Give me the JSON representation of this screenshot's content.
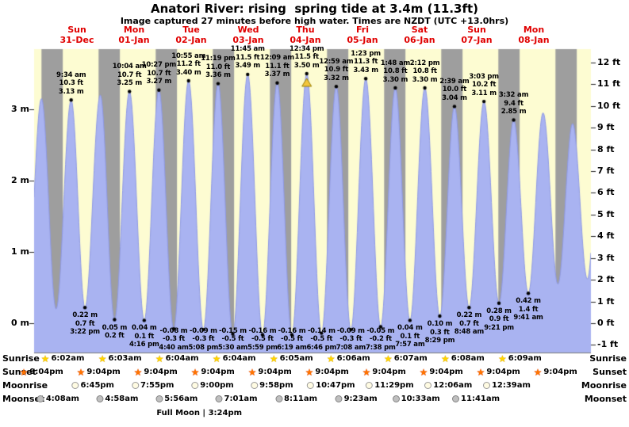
{
  "title": "Anatori River: rising  spring tide at 3.4m (11.3ft)",
  "subtitle": "Image captured 27 minutes before high water. Times are NZDT (UTC +13.0hrs)",
  "chart_data": {
    "type": "area",
    "title": "Anatori River: rising  spring tide at 3.4m (11.3ft)",
    "x_axis_days": [
      {
        "name": "Sun",
        "date": "31-Dec"
      },
      {
        "name": "Mon",
        "date": "01-Jan"
      },
      {
        "name": "Tue",
        "date": "02-Jan"
      },
      {
        "name": "Wed",
        "date": "03-Jan"
      },
      {
        "name": "Thu",
        "date": "04-Jan"
      },
      {
        "name": "Fri",
        "date": "05-Jan"
      },
      {
        "name": "Sat",
        "date": "06-Jan"
      },
      {
        "name": "Sun",
        "date": "07-Jan"
      },
      {
        "name": "Mon",
        "date": "08-Jan"
      }
    ],
    "y_axis": {
      "m_labels": [
        {
          "text": "3 m",
          "v": 3
        },
        {
          "text": "2 m",
          "v": 2
        },
        {
          "text": "1 m",
          "v": 1
        },
        {
          "text": "0 m",
          "v": 0
        }
      ],
      "ft_labels": [
        {
          "text": "12 ft",
          "v": 12
        },
        {
          "text": "11 ft",
          "v": 11
        },
        {
          "text": "10 ft",
          "v": 10
        },
        {
          "text": "9 ft",
          "v": 9
        },
        {
          "text": "8 ft",
          "v": 8
        },
        {
          "text": "7 ft",
          "v": 7
        },
        {
          "text": "6 ft",
          "v": 6
        },
        {
          "text": "5 ft",
          "v": 5
        },
        {
          "text": "4 ft",
          "v": 4
        },
        {
          "text": "3 ft",
          "v": 3
        },
        {
          "text": "2 ft",
          "v": 2
        },
        {
          "text": "1 ft",
          "v": 1
        },
        {
          "text": "0 ft",
          "v": 0
        },
        {
          "text": "-1 ft",
          "v": -1
        }
      ]
    },
    "extremes": [
      {
        "t": -9.2,
        "h": 0.3,
        "kind": "low"
      },
      {
        "t": -2.92,
        "h": 3.15,
        "kind": "high"
      },
      {
        "t": 3.25,
        "h": 0.2,
        "kind": "low"
      },
      {
        "t": 9.57,
        "h": 3.13,
        "kind": "high",
        "lines": [
          "9:34 am",
          "10.3 ft",
          "3.13 m"
        ]
      },
      {
        "t": 15.37,
        "h": 0.22,
        "kind": "low",
        "lines": [
          "0.22 m",
          "0.7 ft",
          "3:22 pm"
        ]
      },
      {
        "t": 21.83,
        "h": 3.2,
        "kind": "high"
      },
      {
        "t": 27.8,
        "h": 0.05,
        "kind": "low",
        "lines": [
          "0.05 m",
          "0.2 ft"
        ]
      },
      {
        "t": 34.07,
        "h": 3.25,
        "kind": "high",
        "lines": [
          "10:04 am",
          "10.7 ft",
          "3.25 m"
        ]
      },
      {
        "t": 40.27,
        "h": 0.04,
        "kind": "low",
        "lines": [
          "0.04 m",
          "0.1 ft",
          "4:16 pm"
        ]
      },
      {
        "t": 46.45,
        "h": 3.27,
        "kind": "high",
        "lines": [
          "10:27 pm",
          "10.7 ft",
          "3.27 m"
        ]
      },
      {
        "t": 52.67,
        "h": -0.08,
        "kind": "low",
        "lines": [
          "-0.08 m",
          "-0.3 ft",
          "4:40 am"
        ]
      },
      {
        "t": 58.92,
        "h": 3.4,
        "kind": "high",
        "lines": [
          "10:55 am",
          "11.2 ft",
          "3.40 m"
        ]
      },
      {
        "t": 65.13,
        "h": -0.09,
        "kind": "low",
        "lines": [
          "-0.09 m",
          "-0.3 ft",
          "5:08 pm"
        ]
      },
      {
        "t": 71.32,
        "h": 3.36,
        "kind": "high",
        "lines": [
          "11:19 pm",
          "11.0 ft",
          "3.36 m"
        ]
      },
      {
        "t": 77.5,
        "h": -0.15,
        "kind": "low",
        "lines": [
          "-0.15 m",
          "-0.5 ft",
          "5:30 am"
        ]
      },
      {
        "t": 83.75,
        "h": 3.49,
        "kind": "high",
        "lines": [
          "11:45 am",
          "11.5 ft",
          "3.49 m"
        ]
      },
      {
        "t": 89.98,
        "h": -0.16,
        "kind": "low",
        "lines": [
          "-0.16 m",
          "-0.5 ft",
          "5:59 pm"
        ]
      },
      {
        "t": 96.15,
        "h": 3.37,
        "kind": "high",
        "lines": [
          "12:09 am",
          "11.1 ft",
          "3.37 m"
        ]
      },
      {
        "t": 102.32,
        "h": -0.16,
        "kind": "low",
        "lines": [
          "-0.16 m",
          "-0.5 ft",
          "6:19 am"
        ]
      },
      {
        "t": 108.57,
        "h": 3.5,
        "kind": "high",
        "lines": [
          "12:34 pm",
          "11.5 ft",
          "3.50 m"
        ],
        "current": true
      },
      {
        "t": 114.77,
        "h": -0.14,
        "kind": "low",
        "lines": [
          "-0.14 m",
          "-0.5 ft",
          "6:46 pm"
        ]
      },
      {
        "t": 120.98,
        "h": 3.32,
        "kind": "high",
        "lines": [
          "12:59 am",
          "10.9 ft",
          "3.32 m"
        ]
      },
      {
        "t": 127.13,
        "h": -0.09,
        "kind": "low",
        "lines": [
          "-0.09 m",
          "-0.3 ft",
          "7:08 am"
        ]
      },
      {
        "t": 133.38,
        "h": 3.43,
        "kind": "high",
        "lines": [
          "1:23 pm",
          "11.3 ft",
          "3.43 m"
        ]
      },
      {
        "t": 139.63,
        "h": -0.05,
        "kind": "low",
        "lines": [
          "-0.05 m",
          "-0.2 ft",
          "7:38 pm"
        ]
      },
      {
        "t": 145.8,
        "h": 3.3,
        "kind": "high",
        "lines": [
          "1:48 am",
          "10.8 ft",
          "3.30 m"
        ]
      },
      {
        "t": 151.95,
        "h": 0.04,
        "kind": "low",
        "lines": [
          "0.04 m",
          "0.1 ft",
          "7:57 am"
        ]
      },
      {
        "t": 158.2,
        "h": 3.3,
        "kind": "high",
        "lines": [
          "2:12 pm",
          "10.8 ft",
          "3.30 m"
        ]
      },
      {
        "t": 164.48,
        "h": 0.1,
        "kind": "low",
        "lines": [
          "0.10 m",
          "0.3 ft",
          "8:29 pm"
        ]
      },
      {
        "t": 170.65,
        "h": 3.04,
        "kind": "high",
        "lines": [
          "2:39 am",
          "10.0 ft",
          "3.04 m"
        ]
      },
      {
        "t": 176.8,
        "h": 0.22,
        "kind": "low",
        "lines": [
          "0.22 m",
          "0.7 ft",
          "8:48 am"
        ]
      },
      {
        "t": 183.05,
        "h": 3.11,
        "kind": "high",
        "lines": [
          "3:03 pm",
          "10.2 ft",
          "3.11 m"
        ]
      },
      {
        "t": 189.35,
        "h": 0.28,
        "kind": "low",
        "lines": [
          "0.28 m",
          "0.9 ft",
          "9:21 pm"
        ]
      },
      {
        "t": 195.53,
        "h": 2.85,
        "kind": "high",
        "lines": [
          "3:32 am",
          "9.4 ft",
          "2.85 m"
        ]
      },
      {
        "t": 201.68,
        "h": 0.42,
        "kind": "low",
        "lines": [
          "0.42 m",
          "1.4 ft",
          "9:41 am"
        ]
      },
      {
        "t": 207.9,
        "h": 2.95,
        "kind": "high"
      },
      {
        "t": 214.1,
        "h": 0.55,
        "kind": "low"
      },
      {
        "t": 220.3,
        "h": 2.8,
        "kind": "high"
      },
      {
        "t": 226.5,
        "h": 0.62,
        "kind": "low"
      },
      {
        "t": 232.0,
        "h": 2.75,
        "kind": "high"
      }
    ],
    "colors": {
      "day_band": "#fdfcd2",
      "night_band": "#9e9e9e",
      "curve_fill": "#a9b3f1",
      "curve_edge": "#8e99e6",
      "day_label": "#e00000",
      "marker": "#f2c53d",
      "marker_edge": "#9a7d00",
      "dot": "#000000"
    },
    "astro": {
      "row_labels": [
        "Sunrise",
        "Sunset",
        "Moonrise",
        "Moonset"
      ],
      "sunrise": [
        {
          "time": "6:02am",
          "t": 6.03
        },
        {
          "time": "6:03am",
          "t": 30.05
        },
        {
          "time": "6:04am",
          "t": 54.07
        },
        {
          "time": "6:04am",
          "t": 78.07
        },
        {
          "time": "6:05am",
          "t": 102.08
        },
        {
          "time": "6:06am",
          "t": 126.1
        },
        {
          "time": "6:07am",
          "t": 150.12
        },
        {
          "time": "6:08am",
          "t": 174.13
        },
        {
          "time": "6:09am",
          "t": 198.15
        }
      ],
      "sunset": [
        {
          "time": "9:04pm",
          "t": -2.93
        },
        {
          "time": "9:04pm",
          "t": 21.07
        },
        {
          "time": "9:04pm",
          "t": 45.07
        },
        {
          "time": "9:04pm",
          "t": 69.07
        },
        {
          "time": "9:04pm",
          "t": 93.07
        },
        {
          "time": "9:04pm",
          "t": 117.07
        },
        {
          "time": "9:04pm",
          "t": 141.07
        },
        {
          "time": "9:04pm",
          "t": 165.07
        },
        {
          "time": "9:04pm",
          "t": 189.07
        },
        {
          "time": "9:04pm",
          "t": 213.07
        }
      ],
      "moonrise": [
        {
          "time": "6:45pm",
          "t": 18.75
        },
        {
          "time": "7:55pm",
          "t": 43.92
        },
        {
          "time": "9:00pm",
          "t": 69.0
        },
        {
          "time": "9:58pm",
          "t": 93.97
        },
        {
          "time": "10:47pm",
          "t": 118.78
        },
        {
          "time": "11:29pm",
          "t": 143.48
        },
        {
          "time": "12:06am",
          "t": 168.1
        },
        {
          "time": "12:39am",
          "t": 192.65
        }
      ],
      "moonset": [
        {
          "time": "4:08am",
          "t": 4.13
        },
        {
          "time": "4:58am",
          "t": 28.97
        },
        {
          "time": "5:56am",
          "t": 53.93
        },
        {
          "time": "7:01am",
          "t": 79.02
        },
        {
          "time": "8:11am",
          "t": 104.18
        },
        {
          "time": "9:23am",
          "t": 129.38
        },
        {
          "time": "10:33am",
          "t": 154.55
        },
        {
          "time": "11:41am",
          "t": 179.68
        }
      ],
      "full_moon": {
        "label": "Full Moon | 3:24pm",
        "t": 63.4
      }
    }
  }
}
